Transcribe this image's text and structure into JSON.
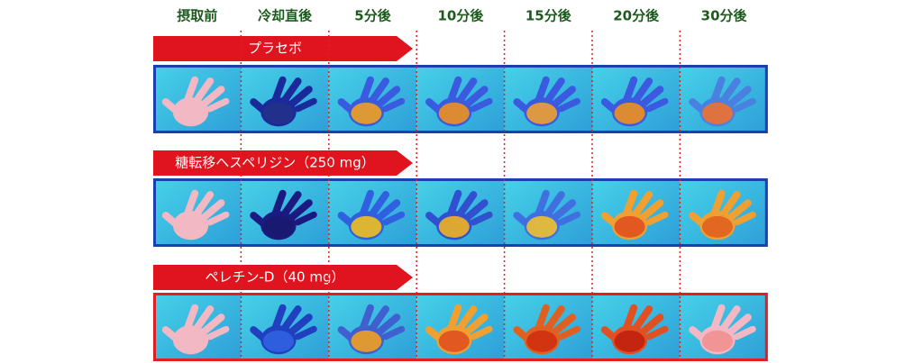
{
  "columns": [
    "摂取前",
    "冷却直後",
    "5分後",
    "10分後",
    "15分後",
    "20分後",
    "30分後"
  ],
  "rows": [
    {
      "label": "プラセボ"
    },
    {
      "label": "糖転移ヘスペリジン（250 mg）"
    },
    {
      "label": "ペレチン-D（40 mg）"
    }
  ]
}
